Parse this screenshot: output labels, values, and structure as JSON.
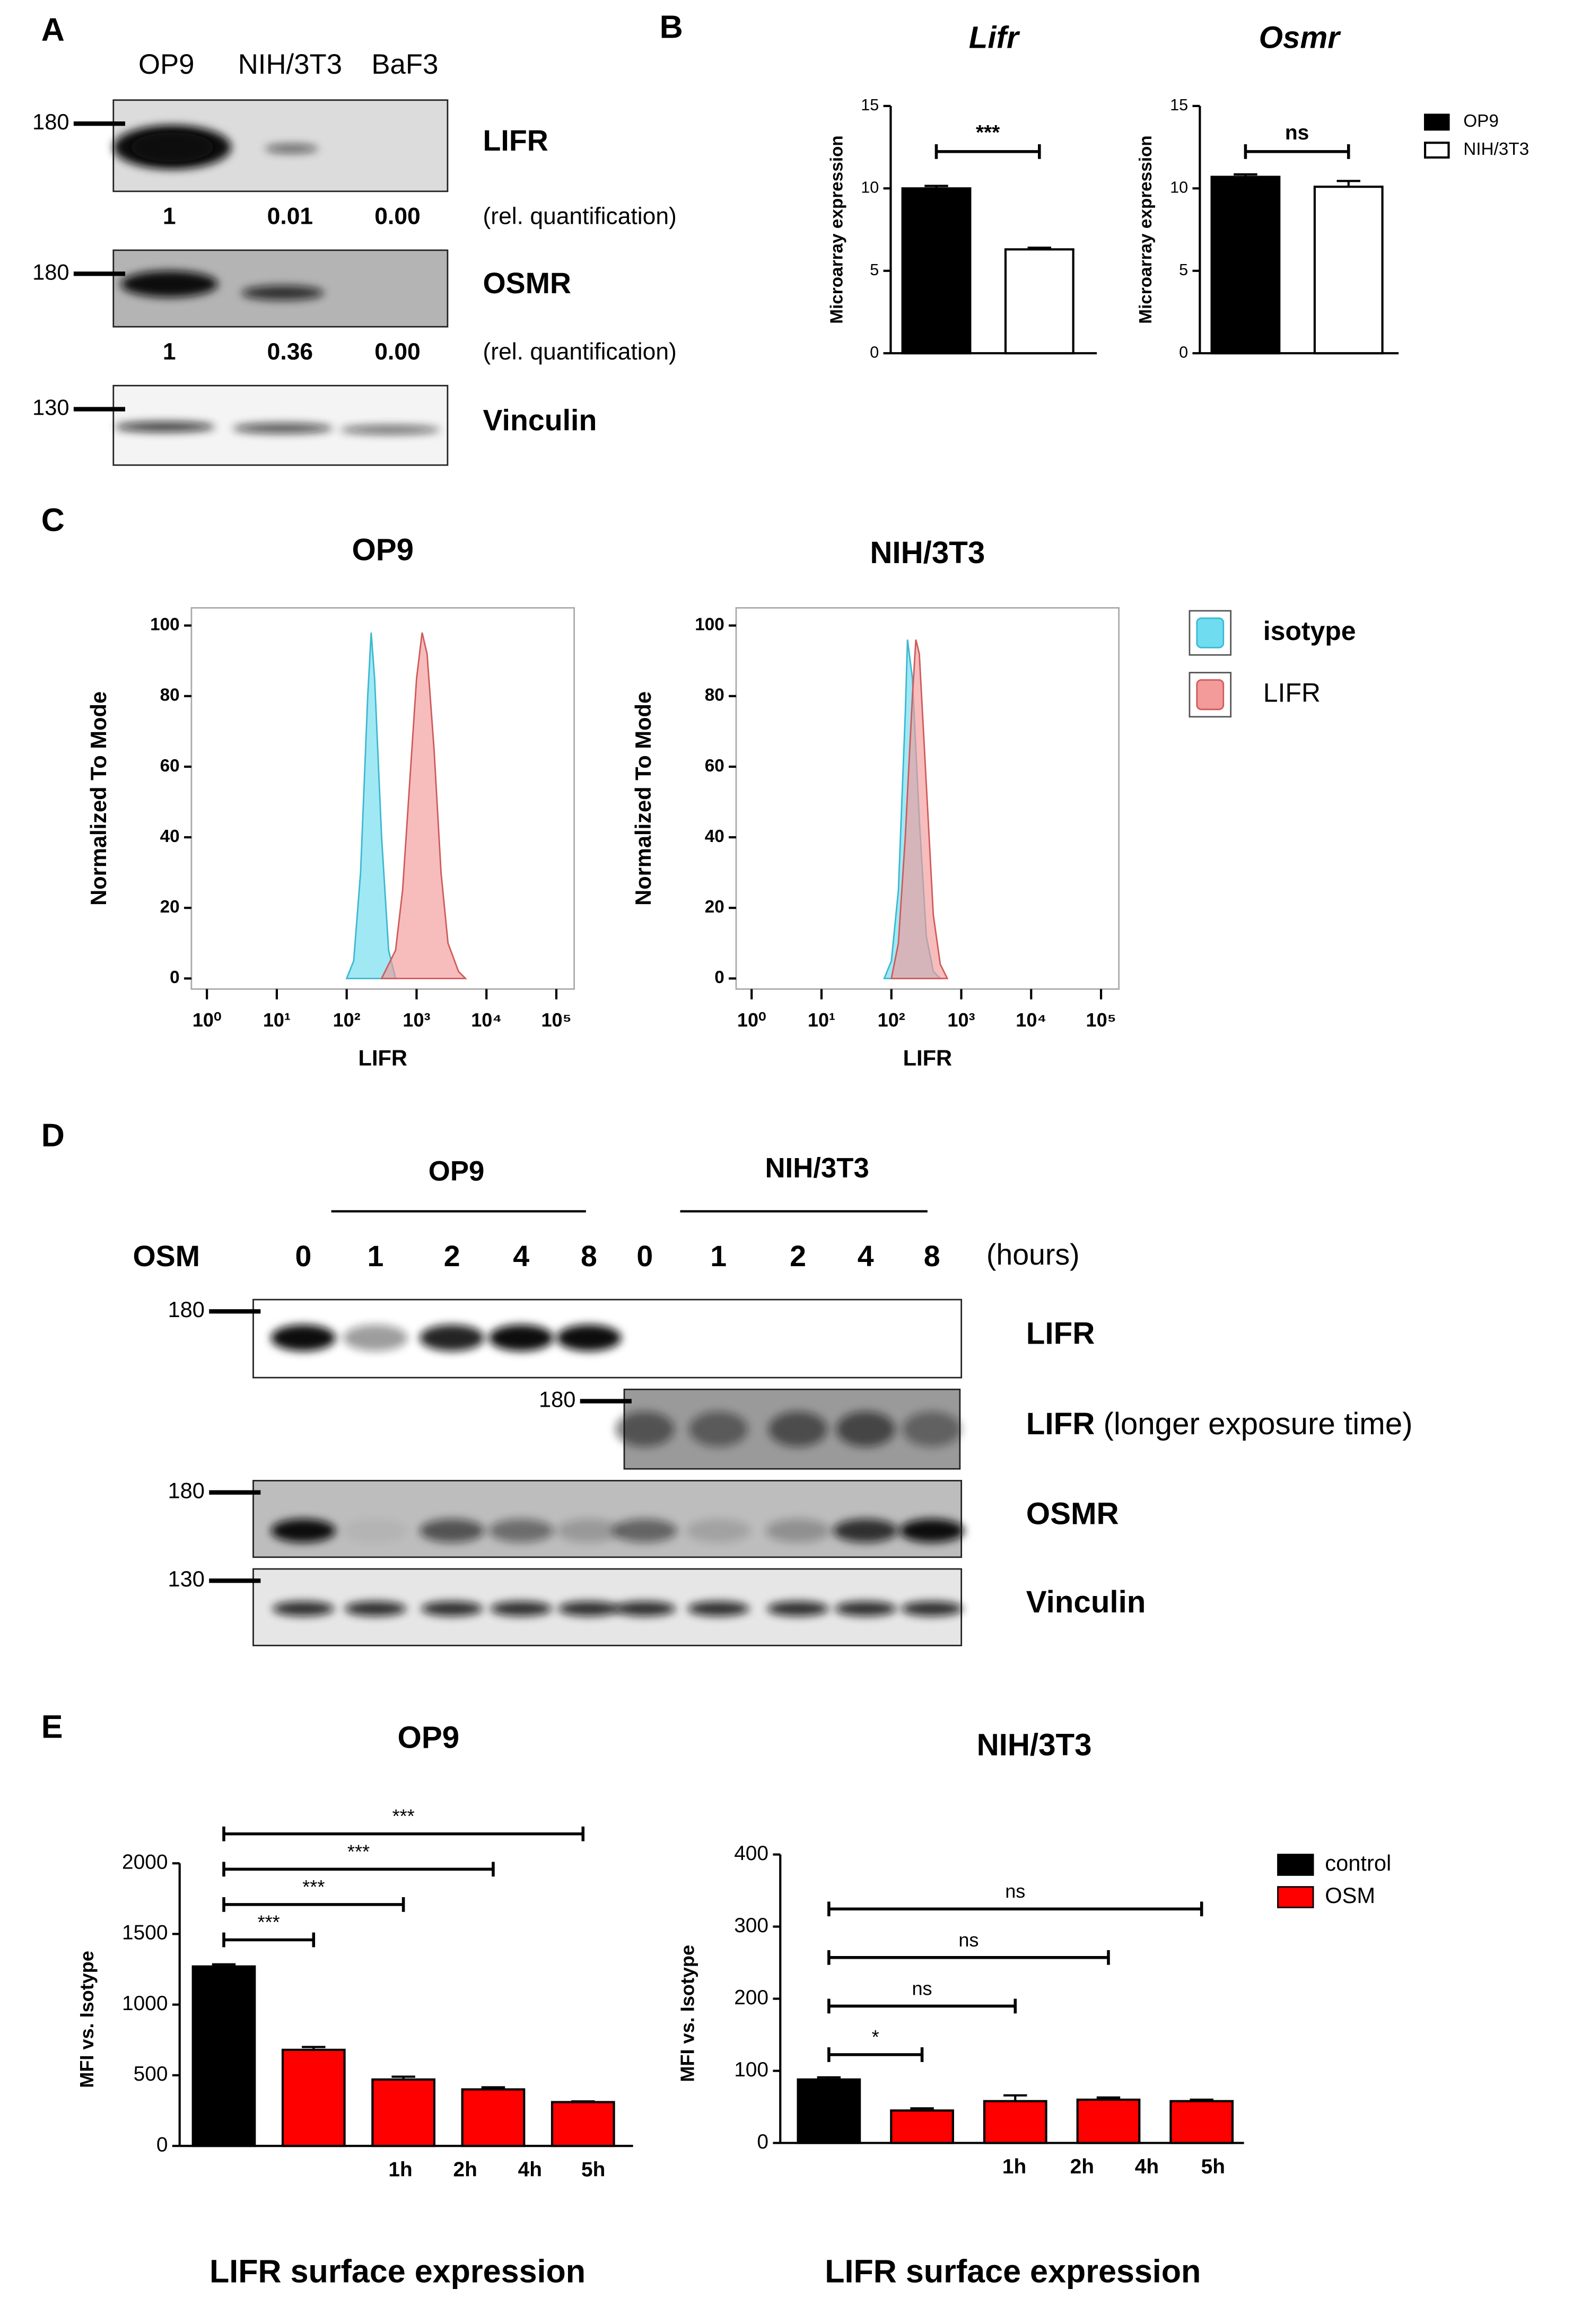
{
  "blot_a": {
    "label": "A",
    "lanes": [
      "OP9",
      "NIH/3T3",
      "BaF3"
    ],
    "rows": [
      {
        "label": "LIFR",
        "marker": "180",
        "quant": [
          "1",
          "0.01",
          "0.00"
        ],
        "note": "(rel. quantification)"
      },
      {
        "label": "OSMR",
        "marker": "180",
        "quant": [
          "1",
          "0.36",
          "0.00"
        ],
        "note": "(rel. quantification)"
      },
      {
        "label": "Vinculin",
        "marker": "130"
      }
    ]
  },
  "blot_d": {
    "label": "D",
    "groups": [
      "OP9",
      "NIH/3T3"
    ],
    "treatment": "OSM",
    "lanes": [
      "0",
      "1",
      "2",
      "4",
      "8",
      "0",
      "1",
      "2",
      "4",
      "8"
    ],
    "unit": "(hours)",
    "rows": [
      {
        "label": "LIFR",
        "marker": "180"
      },
      {
        "label": "LIFR",
        "suffix": "(longer exposure time)",
        "marker": "180"
      },
      {
        "label": "OSMR",
        "marker": "180"
      },
      {
        "label": "Vinculin",
        "marker": "130"
      }
    ]
  },
  "chart_data": [
    {
      "type": "bar",
      "label": "B",
      "ylabel": "Microarray expression",
      "ylim": [
        0,
        15
      ],
      "yticks": [
        0,
        5,
        10,
        15
      ],
      "series": [
        {
          "name": "OP9",
          "color": "#000000"
        },
        {
          "name": "NIH/3T3",
          "color": "#ffffff"
        }
      ],
      "subplots": [
        {
          "title": "Lifr",
          "values": [
            10.0,
            6.3
          ],
          "errors": [
            0.15,
            0.1
          ],
          "annotation": "***"
        },
        {
          "title": "Osmr",
          "values": [
            10.7,
            10.1
          ],
          "errors": [
            0.15,
            0.35
          ],
          "annotation": "ns"
        }
      ]
    },
    {
      "type": "area",
      "label": "C",
      "xlabel": "LIFR",
      "ylabel": "Normalized To Mode",
      "xscale": "log",
      "xlim": [
        0.6,
        180000
      ],
      "ylim": [
        -3,
        105
      ],
      "yticks": [
        0,
        20,
        40,
        60,
        80,
        100
      ],
      "xticks": [
        {
          "value": 1,
          "label": "10⁰"
        },
        {
          "value": 10,
          "label": "10¹"
        },
        {
          "value": 100,
          "label": "10²"
        },
        {
          "value": 1000,
          "label": "10³"
        },
        {
          "value": 10000,
          "label": "10⁴"
        },
        {
          "value": 100000,
          "label": "10⁵"
        }
      ],
      "series": [
        {
          "name": "isotype",
          "color": "#6fdcf0",
          "line": "#3cb8d0"
        },
        {
          "name": "LIFR",
          "color": "#f39a9a",
          "line": "#d05a5a"
        }
      ],
      "subplots": [
        {
          "title": "OP9",
          "data": [
            {
              "x": [
                100,
                126,
                158,
                200,
                224,
                251,
                316,
                398,
                501
              ],
              "y": [
                0,
                5,
                30,
                80,
                98,
                85,
                40,
                8,
                0
              ]
            },
            {
              "x": [
                316,
                501,
                631,
                794,
                1000,
                1200,
                1413,
                1778,
                2239,
                2818,
                3981,
                5012
              ],
              "y": [
                0,
                8,
                25,
                55,
                85,
                98,
                92,
                65,
                30,
                10,
                2,
                0
              ]
            }
          ]
        },
        {
          "title": "NIH/3T3",
          "data": [
            {
              "x": [
                79,
                100,
                126,
                158,
                170,
                200,
                251,
                316,
                398,
                501
              ],
              "y": [
                0,
                5,
                25,
                75,
                96,
                85,
                45,
                12,
                2,
                0
              ]
            },
            {
              "x": [
                100,
                126,
                158,
                200,
                224,
                251,
                316,
                398,
                501,
                631
              ],
              "y": [
                0,
                10,
                40,
                80,
                96,
                92,
                55,
                18,
                4,
                0
              ]
            }
          ]
        }
      ]
    },
    {
      "type": "bar",
      "label": "E",
      "ylabel": "MFI vs. Isotype",
      "caption": "LIFR surface expression",
      "series": [
        {
          "name": "control",
          "color": "#000000"
        },
        {
          "name": "OSM",
          "color": "#ff0000"
        }
      ],
      "subplots": [
        {
          "title": "OP9",
          "ylim": [
            0,
            2000
          ],
          "yticks": [
            0,
            500,
            1000,
            1500,
            2000
          ],
          "x_labels": [
            "1h",
            "2h",
            "4h",
            "5h"
          ],
          "values": [
            [
              1270,
              null,
              null,
              null,
              null
            ],
            [
              null,
              680,
              470,
              400,
              310
            ]
          ],
          "errors": [
            [
              15,
              null,
              null,
              null,
              null
            ],
            [
              null,
              20,
              20,
              15,
              5
            ]
          ],
          "comparisons": [
            "***",
            "***",
            "***",
            "***"
          ]
        },
        {
          "title": "NIH/3T3",
          "ylim": [
            0,
            400
          ],
          "yticks": [
            0,
            100,
            200,
            300,
            400
          ],
          "x_labels": [
            "1h",
            "2h",
            "4h",
            "5h"
          ],
          "values": [
            [
              88,
              null,
              null,
              null,
              null
            ],
            [
              null,
              45,
              58,
              60,
              58
            ]
          ],
          "errors": [
            [
              3,
              null,
              null,
              null,
              null
            ],
            [
              null,
              3,
              8,
              3,
              2
            ]
          ],
          "comparisons": [
            "*",
            "ns",
            "ns",
            "ns"
          ]
        }
      ]
    }
  ]
}
